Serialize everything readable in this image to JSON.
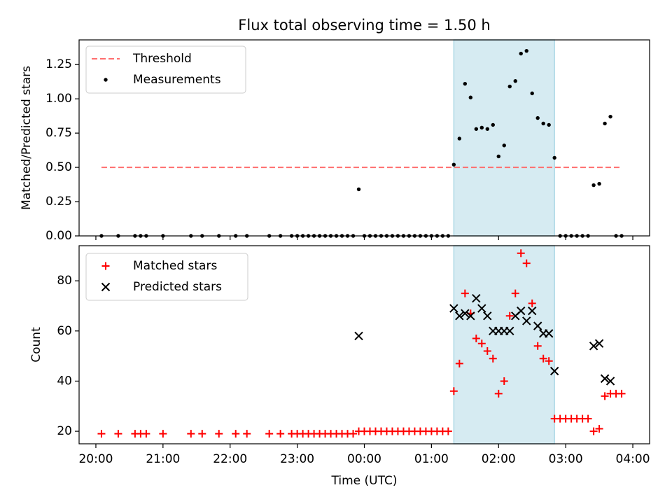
{
  "chart_data": [
    {
      "type": "scatter",
      "title": "Flux total observing time = 1.50 h",
      "xlabel": "",
      "ylabel": "Matched/Predicted stars",
      "ylim": [
        0,
        1.43
      ],
      "yticks": [
        "0.00",
        "0.25",
        "0.50",
        "0.75",
        "1.00",
        "1.25"
      ],
      "grid": false,
      "legend": "top-left",
      "shaded_span": {
        "from": "01:20",
        "to": "02:50",
        "color": "#add8e6"
      },
      "threshold": {
        "name": "Threshold",
        "value": 0.5,
        "from": "20:05",
        "to": "03:50",
        "color": "#ff6f6f"
      },
      "series": [
        {
          "name": "Measurements",
          "marker": "dot",
          "color": "#000000",
          "points": [
            [
              "20:05",
              0
            ],
            [
              "20:20",
              0
            ],
            [
              "20:35",
              0
            ],
            [
              "20:40",
              0
            ],
            [
              "20:45",
              0
            ],
            [
              "21:00",
              0
            ],
            [
              "21:25",
              0
            ],
            [
              "21:35",
              0
            ],
            [
              "21:50",
              0
            ],
            [
              "22:05",
              0
            ],
            [
              "22:15",
              0
            ],
            [
              "22:35",
              0
            ],
            [
              "22:45",
              0
            ],
            [
              "22:55",
              0
            ],
            [
              "23:00",
              0
            ],
            [
              "23:05",
              0
            ],
            [
              "23:10",
              0
            ],
            [
              "23:15",
              0
            ],
            [
              "23:20",
              0
            ],
            [
              "23:25",
              0
            ],
            [
              "23:30",
              0
            ],
            [
              "23:35",
              0
            ],
            [
              "23:40",
              0
            ],
            [
              "23:45",
              0
            ],
            [
              "23:50",
              0
            ],
            [
              "23:55",
              0.34
            ],
            [
              "00:00",
              0
            ],
            [
              "00:05",
              0
            ],
            [
              "00:10",
              0
            ],
            [
              "00:15",
              0
            ],
            [
              "00:20",
              0
            ],
            [
              "00:25",
              0
            ],
            [
              "00:30",
              0
            ],
            [
              "00:35",
              0
            ],
            [
              "00:40",
              0
            ],
            [
              "00:45",
              0
            ],
            [
              "00:50",
              0
            ],
            [
              "00:55",
              0
            ],
            [
              "01:00",
              0
            ],
            [
              "01:05",
              0
            ],
            [
              "01:10",
              0
            ],
            [
              "01:15",
              0
            ],
            [
              "01:20",
              0.52
            ],
            [
              "01:25",
              0.71
            ],
            [
              "01:30",
              1.11
            ],
            [
              "01:35",
              1.01
            ],
            [
              "01:40",
              0.78
            ],
            [
              "01:45",
              0.79
            ],
            [
              "01:50",
              0.78
            ],
            [
              "01:55",
              0.81
            ],
            [
              "02:00",
              0.58
            ],
            [
              "02:05",
              0.66
            ],
            [
              "02:10",
              1.09
            ],
            [
              "02:15",
              1.13
            ],
            [
              "02:20",
              1.33
            ],
            [
              "02:25",
              1.35
            ],
            [
              "02:30",
              1.04
            ],
            [
              "02:35",
              0.86
            ],
            [
              "02:40",
              0.82
            ],
            [
              "02:45",
              0.81
            ],
            [
              "02:50",
              0.57
            ],
            [
              "02:55",
              0
            ],
            [
              "03:00",
              0
            ],
            [
              "03:05",
              0
            ],
            [
              "03:10",
              0
            ],
            [
              "03:15",
              0
            ],
            [
              "03:20",
              0
            ],
            [
              "03:25",
              0.37
            ],
            [
              "03:30",
              0.38
            ],
            [
              "03:35",
              0.82
            ],
            [
              "03:40",
              0.87
            ],
            [
              "03:45",
              0
            ],
            [
              "03:50",
              0
            ]
          ]
        }
      ]
    },
    {
      "type": "scatter",
      "title": "",
      "xlabel": "Time (UTC)",
      "ylabel": "Count",
      "xlim": [
        "19:45",
        "04:15"
      ],
      "xticks": [
        "20:00",
        "21:00",
        "22:00",
        "23:00",
        "00:00",
        "01:00",
        "02:00",
        "03:00",
        "04:00"
      ],
      "ylim": [
        15,
        94
      ],
      "yticks": [
        "20",
        "40",
        "60",
        "80"
      ],
      "grid": false,
      "legend": "top-left",
      "shaded_span": {
        "from": "01:20",
        "to": "02:50",
        "color": "#add8e6"
      },
      "series": [
        {
          "name": "Matched stars",
          "marker": "plus",
          "color": "#ff0000",
          "points": [
            [
              "20:05",
              19
            ],
            [
              "20:20",
              19
            ],
            [
              "20:35",
              19
            ],
            [
              "20:40",
              19
            ],
            [
              "20:45",
              19
            ],
            [
              "21:00",
              19
            ],
            [
              "21:25",
              19
            ],
            [
              "21:35",
              19
            ],
            [
              "21:50",
              19
            ],
            [
              "22:05",
              19
            ],
            [
              "22:15",
              19
            ],
            [
              "22:35",
              19
            ],
            [
              "22:45",
              19
            ],
            [
              "22:55",
              19
            ],
            [
              "23:00",
              19
            ],
            [
              "23:05",
              19
            ],
            [
              "23:10",
              19
            ],
            [
              "23:15",
              19
            ],
            [
              "23:20",
              19
            ],
            [
              "23:25",
              19
            ],
            [
              "23:30",
              19
            ],
            [
              "23:35",
              19
            ],
            [
              "23:40",
              19
            ],
            [
              "23:45",
              19
            ],
            [
              "23:50",
              19
            ],
            [
              "23:55",
              20
            ],
            [
              "00:00",
              20
            ],
            [
              "00:05",
              20
            ],
            [
              "00:10",
              20
            ],
            [
              "00:15",
              20
            ],
            [
              "00:20",
              20
            ],
            [
              "00:25",
              20
            ],
            [
              "00:30",
              20
            ],
            [
              "00:35",
              20
            ],
            [
              "00:40",
              20
            ],
            [
              "00:45",
              20
            ],
            [
              "00:50",
              20
            ],
            [
              "00:55",
              20
            ],
            [
              "01:00",
              20
            ],
            [
              "01:05",
              20
            ],
            [
              "01:10",
              20
            ],
            [
              "01:15",
              20
            ],
            [
              "01:20",
              36
            ],
            [
              "01:25",
              47
            ],
            [
              "01:30",
              75
            ],
            [
              "01:35",
              67
            ],
            [
              "01:40",
              57
            ],
            [
              "01:45",
              55
            ],
            [
              "01:50",
              52
            ],
            [
              "01:55",
              49
            ],
            [
              "02:00",
              35
            ],
            [
              "02:05",
              40
            ],
            [
              "02:10",
              66
            ],
            [
              "02:15",
              75
            ],
            [
              "02:20",
              91
            ],
            [
              "02:25",
              87
            ],
            [
              "02:30",
              71
            ],
            [
              "02:35",
              54
            ],
            [
              "02:40",
              49
            ],
            [
              "02:45",
              48
            ],
            [
              "02:50",
              25
            ],
            [
              "02:55",
              25
            ],
            [
              "03:00",
              25
            ],
            [
              "03:05",
              25
            ],
            [
              "03:10",
              25
            ],
            [
              "03:15",
              25
            ],
            [
              "03:20",
              25
            ],
            [
              "03:25",
              20
            ],
            [
              "03:30",
              21
            ],
            [
              "03:35",
              34
            ],
            [
              "03:40",
              35
            ],
            [
              "03:45",
              35
            ],
            [
              "03:50",
              35
            ]
          ]
        },
        {
          "name": "Predicted stars",
          "marker": "x",
          "color": "#000000",
          "points": [
            [
              "23:55",
              58
            ],
            [
              "01:20",
              69
            ],
            [
              "01:25",
              66
            ],
            [
              "01:30",
              67
            ],
            [
              "01:35",
              66
            ],
            [
              "01:40",
              73
            ],
            [
              "01:45",
              69
            ],
            [
              "01:50",
              66
            ],
            [
              "01:55",
              60
            ],
            [
              "02:00",
              60
            ],
            [
              "02:05",
              60
            ],
            [
              "02:10",
              60
            ],
            [
              "02:15",
              66
            ],
            [
              "02:20",
              68
            ],
            [
              "02:25",
              64
            ],
            [
              "02:30",
              68
            ],
            [
              "02:35",
              62
            ],
            [
              "02:40",
              59
            ],
            [
              "02:45",
              59
            ],
            [
              "02:50",
              44
            ],
            [
              "03:25",
              54
            ],
            [
              "03:30",
              55
            ],
            [
              "03:35",
              41
            ],
            [
              "03:40",
              40
            ]
          ]
        }
      ]
    }
  ]
}
